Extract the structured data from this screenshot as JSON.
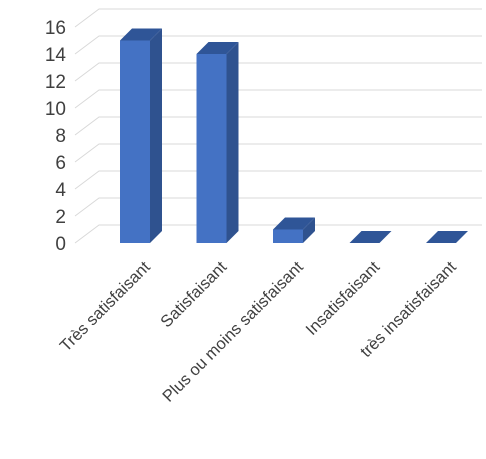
{
  "chart_data": {
    "type": "bar",
    "style": "3d-column",
    "categories": [
      "Très satisfaisant",
      "Satisfaisant",
      "Plus ou moins satisfaisant",
      "Insatisfaisant",
      "très insatisfaisant"
    ],
    "values": [
      15,
      14,
      1,
      0,
      0
    ],
    "title": "",
    "xlabel": "",
    "ylabel": "",
    "ylim": [
      0,
      16
    ],
    "yticks": [
      0,
      2,
      4,
      6,
      8,
      10,
      12,
      14,
      16
    ],
    "grid": true,
    "legend": "none",
    "colors": {
      "bar_front": "#4472c4",
      "bar_side": "#2f528f",
      "bar_top": "#2f5597",
      "grid": "#d9d9d9",
      "text": "#404040"
    }
  }
}
